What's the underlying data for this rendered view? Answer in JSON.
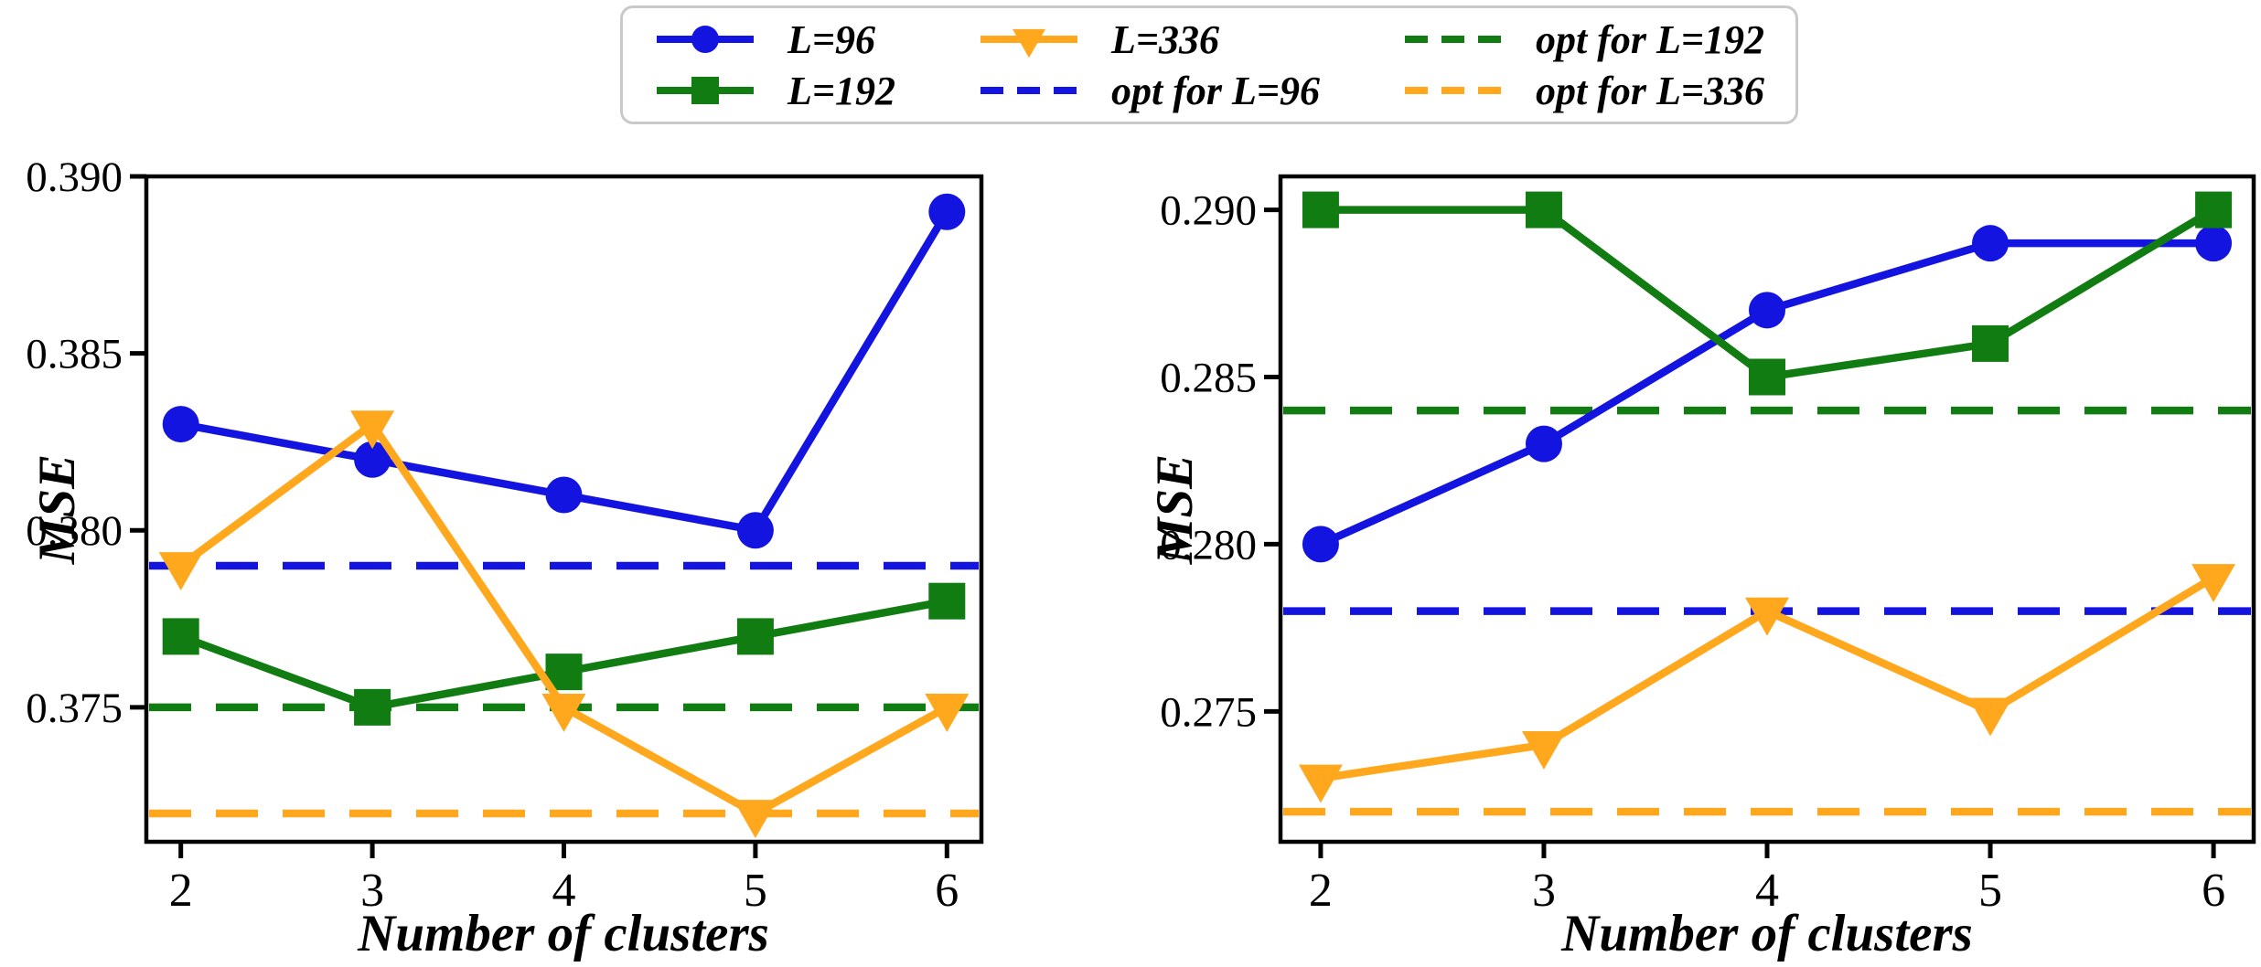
{
  "figure": {
    "background": "#ffffff",
    "frame_color": "#000000"
  },
  "legend": {
    "items": [
      {
        "label": "L=96",
        "color": "#1414e0",
        "marker": "circle",
        "line": "solid"
      },
      {
        "label": "L=192",
        "color": "#117c11",
        "marker": "square",
        "line": "solid"
      },
      {
        "label": "L=336",
        "color": "#ffa81e",
        "marker": "triangle-down",
        "line": "solid"
      },
      {
        "label": "opt for L=96",
        "color": "#1414e0",
        "marker": "none",
        "line": "dashed"
      },
      {
        "label": "opt for L=192",
        "color": "#117c11",
        "marker": "none",
        "line": "dashed"
      },
      {
        "label": "opt for L=336",
        "color": "#ffa81e",
        "marker": "none",
        "line": "dashed"
      }
    ]
  },
  "chart_data": [
    {
      "type": "line",
      "title": "",
      "xlabel": "Number of clusters",
      "ylabel": "MSE",
      "x": [
        2,
        3,
        4,
        5,
        6
      ],
      "xlim": [
        1.82,
        6.18
      ],
      "ylim": [
        0.3712,
        0.39
      ],
      "grid": false,
      "xticks": [
        {
          "value": 2,
          "label": "2"
        },
        {
          "value": 3,
          "label": "3"
        },
        {
          "value": 4,
          "label": "4"
        },
        {
          "value": 5,
          "label": "5"
        },
        {
          "value": 6,
          "label": "6"
        }
      ],
      "yticks": [
        {
          "value": 0.375,
          "label": "0.375"
        },
        {
          "value": 0.38,
          "label": "0.380"
        },
        {
          "value": 0.385,
          "label": "0.385"
        },
        {
          "value": 0.39,
          "label": "0.390"
        }
      ],
      "series": [
        {
          "name": "L=96",
          "color": "#1414e0",
          "marker": "circle",
          "values": [
            0.383,
            0.382,
            0.381,
            0.38,
            0.389
          ]
        },
        {
          "name": "L=192",
          "color": "#117c11",
          "marker": "square",
          "values": [
            0.377,
            0.375,
            0.376,
            0.377,
            0.378
          ]
        },
        {
          "name": "L=336",
          "color": "#ffa81e",
          "marker": "triangle-down",
          "values": [
            0.379,
            0.383,
            0.375,
            0.372,
            0.375
          ]
        }
      ],
      "hlines": [
        {
          "name": "opt for L=96",
          "value": 0.379,
          "color": "#1414e0"
        },
        {
          "name": "opt for L=192",
          "value": 0.375,
          "color": "#117c11"
        },
        {
          "name": "opt for L=336",
          "value": 0.372,
          "color": "#ffa81e"
        }
      ]
    },
    {
      "type": "line",
      "title": "",
      "xlabel": "Number of clusters",
      "ylabel": "MSE",
      "x": [
        2,
        3,
        4,
        5,
        6
      ],
      "xlim": [
        1.82,
        6.18
      ],
      "ylim": [
        0.2711,
        0.291
      ],
      "grid": false,
      "xticks": [
        {
          "value": 2,
          "label": "2"
        },
        {
          "value": 3,
          "label": "3"
        },
        {
          "value": 4,
          "label": "4"
        },
        {
          "value": 5,
          "label": "5"
        },
        {
          "value": 6,
          "label": "6"
        }
      ],
      "yticks": [
        {
          "value": 0.275,
          "label": "0.275"
        },
        {
          "value": 0.28,
          "label": "0.280"
        },
        {
          "value": 0.285,
          "label": "0.285"
        },
        {
          "value": 0.29,
          "label": "0.290"
        }
      ],
      "series": [
        {
          "name": "L=96",
          "color": "#1414e0",
          "marker": "circle",
          "values": [
            0.28,
            0.283,
            0.287,
            0.289,
            0.289
          ]
        },
        {
          "name": "L=192",
          "color": "#117c11",
          "marker": "square",
          "values": [
            0.29,
            0.29,
            0.285,
            0.286,
            0.29
          ]
        },
        {
          "name": "L=336",
          "color": "#ffa81e",
          "marker": "triangle-down",
          "values": [
            0.273,
            0.274,
            0.278,
            0.275,
            0.279
          ]
        }
      ],
      "hlines": [
        {
          "name": "opt for L=96",
          "value": 0.278,
          "color": "#1414e0"
        },
        {
          "name": "opt for L=192",
          "value": 0.284,
          "color": "#117c11"
        },
        {
          "name": "opt for L=336",
          "value": 0.272,
          "color": "#ffa81e"
        }
      ]
    }
  ]
}
